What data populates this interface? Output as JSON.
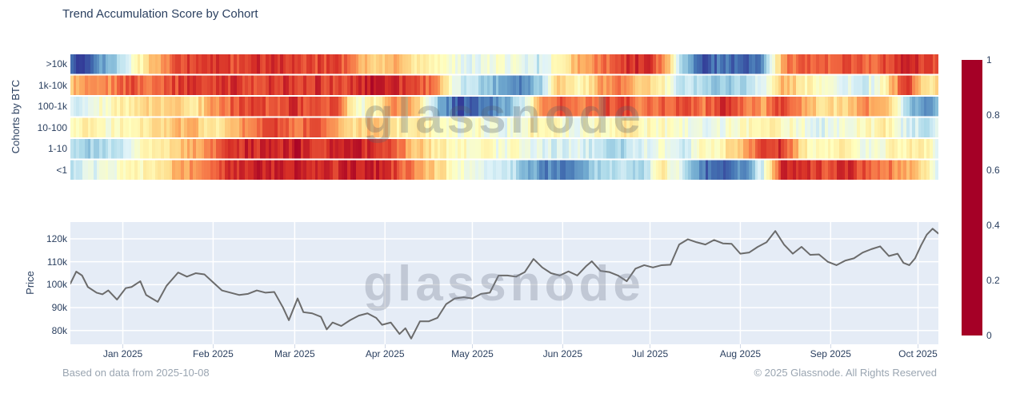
{
  "watermark": "glassnode",
  "footer": {
    "left": "Based on data from 2025-10-08",
    "right": "© 2025 Glassnode. All Rights Reserved"
  },
  "colors": {
    "title_text": "#2a3f5f",
    "tick_text": "#2a3f5f",
    "footer_text": "#9aa5b1",
    "plot_background": "#e5ecf6",
    "gridline": "#ffffff",
    "price_line": "#6b6b6b",
    "colormap_rdylbu": [
      "#a50026",
      "#d73027",
      "#f46d43",
      "#fdae61",
      "#fee090",
      "#ffffbf",
      "#e0f3f8",
      "#abd9e9",
      "#74add1",
      "#4575b4",
      "#313695"
    ]
  },
  "chart_data": [
    {
      "type": "heatmap",
      "title": "Trend Accumulation Score by Cohort",
      "y_axis_title": "Cohorts by BTC",
      "rows": [
        ">10k",
        "1k-10k",
        "100-1k",
        "10-100",
        "1-10",
        "<1"
      ],
      "x_start": "2024-12-14",
      "x_end": "2025-10-08",
      "x_total_days": 298,
      "sample_days": [
        0,
        7,
        14,
        21,
        28,
        35,
        42,
        49,
        56,
        63,
        70,
        77,
        84,
        91,
        98,
        105,
        112,
        119,
        126,
        133,
        140,
        147,
        154,
        161,
        168,
        175,
        182,
        189,
        196,
        203,
        210,
        217,
        224,
        231,
        238,
        245,
        252,
        259,
        266,
        273,
        280,
        287,
        294,
        298
      ],
      "series": [
        {
          "name": ">10k",
          "values": [
            0.97,
            0.95,
            0.75,
            0.55,
            0.35,
            0.2,
            0.12,
            0.1,
            0.15,
            0.08,
            0.12,
            0.1,
            0.15,
            0.12,
            0.28,
            0.38,
            0.3,
            0.45,
            0.5,
            0.55,
            0.62,
            0.5,
            0.58,
            0.65,
            0.45,
            0.3,
            0.22,
            0.12,
            0.08,
            0.2,
            0.7,
            0.95,
            0.9,
            0.95,
            0.85,
            0.25,
            0.15,
            0.2,
            0.15,
            0.2,
            0.15,
            0.05,
            0.12,
            0.2
          ]
        },
        {
          "name": "1k-10k",
          "values": [
            0.35,
            0.2,
            0.25,
            0.15,
            0.25,
            0.15,
            0.1,
            0.15,
            0.1,
            0.15,
            0.1,
            0.12,
            0.1,
            0.15,
            0.1,
            0.05,
            0.1,
            0.15,
            0.25,
            0.6,
            0.7,
            0.8,
            0.9,
            0.75,
            0.35,
            0.5,
            0.3,
            0.2,
            0.35,
            0.45,
            0.65,
            0.7,
            0.75,
            0.7,
            0.6,
            0.3,
            0.45,
            0.55,
            0.6,
            0.62,
            0.45,
            0.08,
            0.45,
            0.4
          ]
        },
        {
          "name": "100-1k",
          "values": [
            0.65,
            0.55,
            0.5,
            0.42,
            0.38,
            0.35,
            0.45,
            0.28,
            0.18,
            0.12,
            0.2,
            0.1,
            0.18,
            0.12,
            0.55,
            0.45,
            0.25,
            0.35,
            0.75,
            0.95,
            0.9,
            0.85,
            0.7,
            0.3,
            0.15,
            0.22,
            0.18,
            0.12,
            0.22,
            0.18,
            0.15,
            0.22,
            0.1,
            0.18,
            0.3,
            0.08,
            0.3,
            0.42,
            0.38,
            0.25,
            0.3,
            0.7,
            0.9,
            0.72
          ]
        },
        {
          "name": "10-100",
          "values": [
            0.5,
            0.45,
            0.52,
            0.45,
            0.4,
            0.35,
            0.3,
            0.45,
            0.32,
            0.2,
            0.15,
            0.22,
            0.15,
            0.28,
            0.4,
            0.3,
            0.45,
            0.42,
            0.5,
            0.55,
            0.5,
            0.6,
            0.52,
            0.45,
            0.5,
            0.55,
            0.5,
            0.42,
            0.48,
            0.5,
            0.55,
            0.6,
            0.55,
            0.5,
            0.45,
            0.5,
            0.55,
            0.6,
            0.55,
            0.5,
            0.45,
            0.62,
            0.65,
            0.55
          ]
        },
        {
          "name": "1-10",
          "values": [
            0.7,
            0.72,
            0.65,
            0.6,
            0.45,
            0.4,
            0.3,
            0.2,
            0.1,
            0.08,
            0.1,
            0.05,
            0.1,
            0.1,
            0.08,
            0.1,
            0.2,
            0.35,
            0.45,
            0.5,
            0.48,
            0.55,
            0.5,
            0.6,
            0.62,
            0.6,
            0.65,
            0.7,
            0.6,
            0.55,
            0.65,
            0.5,
            0.45,
            0.35,
            0.08,
            0.12,
            0.45,
            0.5,
            0.45,
            0.55,
            0.5,
            0.45,
            0.48,
            0.6
          ]
        },
        {
          "name": "<1",
          "values": [
            0.68,
            0.6,
            0.55,
            0.5,
            0.45,
            0.35,
            0.25,
            0.15,
            0.1,
            0.05,
            0.08,
            0.05,
            0.08,
            0.1,
            0.05,
            0.08,
            0.15,
            0.25,
            0.4,
            0.5,
            0.55,
            0.6,
            0.7,
            0.85,
            0.9,
            0.8,
            0.7,
            0.65,
            0.7,
            0.45,
            0.6,
            0.9,
            0.95,
            0.85,
            0.6,
            0.05,
            0.1,
            0.15,
            0.1,
            0.15,
            0.2,
            0.3,
            0.45,
            0.62
          ]
        }
      ],
      "colorbar": {
        "min": 0,
        "max": 1,
        "tick_labels": [
          "1",
          "0.8",
          "0.6",
          "0.4",
          "0.2",
          "0"
        ]
      }
    },
    {
      "type": "line",
      "name": "BTC price",
      "y_axis_title": "Price",
      "y_tick_labels": [
        "120k",
        "110k",
        "100k",
        "90k",
        "80k"
      ],
      "y_tick_values_k": [
        120,
        110,
        100,
        90,
        80
      ],
      "ylim_k": [
        74,
        127.3
      ],
      "x_tick_labels": [
        "Jan 2025",
        "Feb 2025",
        "Mar 2025",
        "Apr 2025",
        "May 2025",
        "Jun 2025",
        "Jul 2025",
        "Aug 2025",
        "Sep 2025",
        "Oct 2025"
      ],
      "x_tick_days": [
        18,
        49,
        77,
        108,
        138,
        169,
        199,
        230,
        261,
        291
      ],
      "x_total_days": 298,
      "points_day_price_k": [
        [
          0,
          100.5
        ],
        [
          2,
          105.7
        ],
        [
          4,
          104
        ],
        [
          6,
          99
        ],
        [
          9,
          96.5
        ],
        [
          11,
          95.8
        ],
        [
          13,
          97.5
        ],
        [
          16,
          93.5
        ],
        [
          19,
          98.5
        ],
        [
          21,
          99
        ],
        [
          24,
          101.5
        ],
        [
          26,
          95.5
        ],
        [
          28,
          94
        ],
        [
          30,
          92.5
        ],
        [
          33,
          99.5
        ],
        [
          37,
          105.3
        ],
        [
          40,
          103.5
        ],
        [
          43,
          105
        ],
        [
          46,
          104.5
        ],
        [
          49,
          101
        ],
        [
          52,
          97.5
        ],
        [
          55,
          96.5
        ],
        [
          58,
          95.5
        ],
        [
          61,
          96
        ],
        [
          64,
          97.5
        ],
        [
          67,
          96.5
        ],
        [
          70,
          96.8
        ],
        [
          73,
          90
        ],
        [
          75,
          84.5
        ],
        [
          78,
          94
        ],
        [
          80,
          88
        ],
        [
          83,
          87.5
        ],
        [
          86,
          86
        ],
        [
          88,
          80.5
        ],
        [
          90,
          83.5
        ],
        [
          93,
          82
        ],
        [
          96,
          84.5
        ],
        [
          99,
          86.5
        ],
        [
          102,
          87.5
        ],
        [
          105,
          85.5
        ],
        [
          107,
          82.5
        ],
        [
          110,
          83.5
        ],
        [
          113,
          78.5
        ],
        [
          115,
          81
        ],
        [
          117,
          76.5
        ],
        [
          120,
          84
        ],
        [
          123,
          84
        ],
        [
          126,
          85.5
        ],
        [
          129,
          91.5
        ],
        [
          132,
          94
        ],
        [
          135,
          94.5
        ],
        [
          138,
          94
        ],
        [
          141,
          96
        ],
        [
          144,
          96.5
        ],
        [
          147,
          104
        ],
        [
          150,
          104
        ],
        [
          153,
          103.5
        ],
        [
          156,
          105.5
        ],
        [
          159,
          111.2
        ],
        [
          162,
          107.5
        ],
        [
          165,
          105
        ],
        [
          168,
          104
        ],
        [
          171,
          105.8
        ],
        [
          174,
          104
        ],
        [
          177,
          108
        ],
        [
          179,
          110.2
        ],
        [
          182,
          106
        ],
        [
          185,
          105.5
        ],
        [
          188,
          104
        ],
        [
          191,
          101.5
        ],
        [
          194,
          107
        ],
        [
          197,
          108.5
        ],
        [
          200,
          107.5
        ],
        [
          203,
          108.5
        ],
        [
          206,
          108.7
        ],
        [
          209,
          117.5
        ],
        [
          212,
          119.8
        ],
        [
          215,
          118.5
        ],
        [
          218,
          117.5
        ],
        [
          221,
          119.5
        ],
        [
          224,
          118
        ],
        [
          227,
          117.8
        ],
        [
          230,
          113.5
        ],
        [
          233,
          114
        ],
        [
          236,
          116.5
        ],
        [
          239,
          118.5
        ],
        [
          242,
          123.4
        ],
        [
          245,
          117.5
        ],
        [
          248,
          113.5
        ],
        [
          251,
          116.5
        ],
        [
          254,
          113
        ],
        [
          257,
          113.2
        ],
        [
          260,
          110
        ],
        [
          263,
          108.5
        ],
        [
          266,
          110.5
        ],
        [
          269,
          111.5
        ],
        [
          272,
          114
        ],
        [
          275,
          115.5
        ],
        [
          278,
          116.7
        ],
        [
          281,
          112.5
        ],
        [
          284,
          113.5
        ],
        [
          286,
          109.5
        ],
        [
          288,
          108.5
        ],
        [
          290,
          111.5
        ],
        [
          292,
          117
        ],
        [
          294,
          121.8
        ],
        [
          296,
          124.4
        ],
        [
          298,
          122.3
        ]
      ]
    }
  ]
}
